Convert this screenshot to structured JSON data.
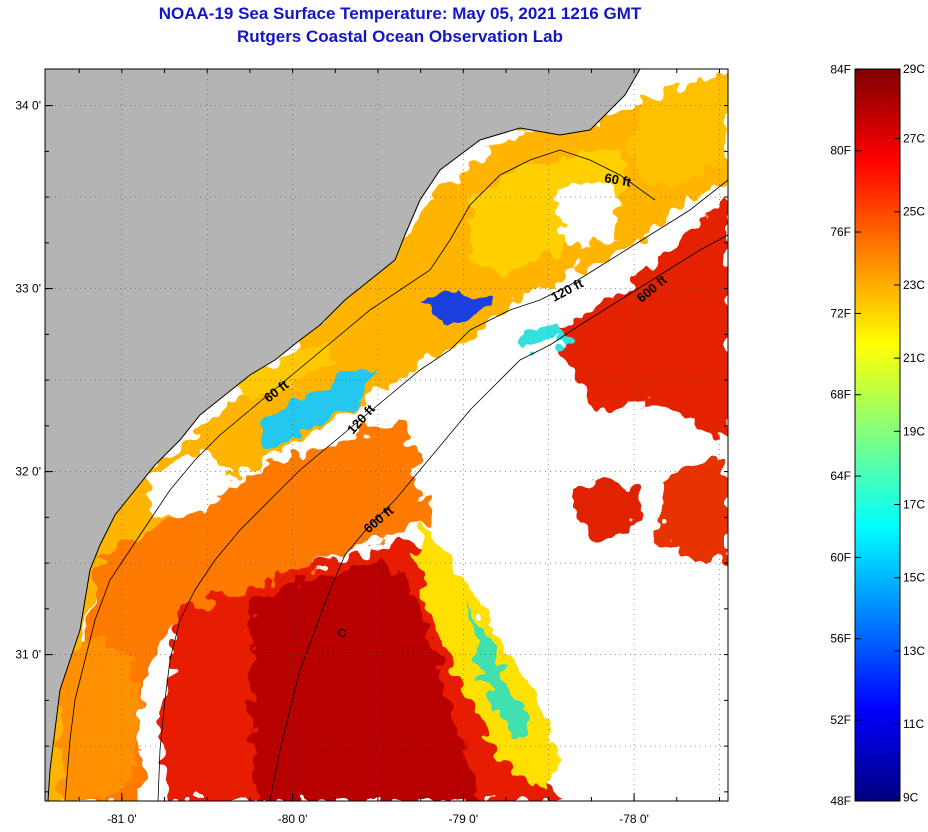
{
  "title": {
    "line1": "NOAA-19 Sea Surface Temperature:  May 05, 2021 1216 GMT",
    "line2": "Rutgers Coastal Ocean Observation Lab"
  },
  "map": {
    "lon_range": [
      -81.45,
      -77.45
    ],
    "lat_range": [
      30.2,
      34.2
    ],
    "x_ticks": [
      {
        "value": -81,
        "label": "-81 0'"
      },
      {
        "value": -80,
        "label": "-80 0'"
      },
      {
        "value": -79,
        "label": "-79 0'"
      },
      {
        "value": -78,
        "label": "-78 0'"
      }
    ],
    "y_ticks": [
      {
        "value": 34,
        "label": "34 0'"
      },
      {
        "value": 33,
        "label": "33 0'"
      },
      {
        "value": 32,
        "label": "32 0'"
      },
      {
        "value": 31,
        "label": "31 0'"
      }
    ],
    "grid": "dotted",
    "contour_labels": [
      {
        "text": "60 ft",
        "lon": -78.1,
        "lat": 33.57,
        "angle": 10
      },
      {
        "text": "120 ft",
        "lon": -78.38,
        "lat": 32.97,
        "angle": -28
      },
      {
        "text": "600 ft",
        "lon": -77.88,
        "lat": 32.98,
        "angle": -40
      },
      {
        "text": "60 ft",
        "lon": -80.08,
        "lat": 32.42,
        "angle": -38
      },
      {
        "text": "120 ft",
        "lon": -79.58,
        "lat": 32.27,
        "angle": -48
      },
      {
        "text": "600 ft",
        "lon": -79.48,
        "lat": 31.72,
        "angle": -40
      }
    ],
    "colors": {
      "land": "#b4b4b4",
      "cloud": "#ffffff"
    }
  },
  "colorbar": {
    "f_labels": [
      "84F",
      "80F",
      "76F",
      "72F",
      "68F",
      "64F",
      "60F",
      "56F",
      "52F",
      "48F"
    ],
    "f_values": [
      84,
      80,
      76,
      72,
      68,
      64,
      60,
      56,
      52,
      48
    ],
    "c_labels": [
      "29C",
      "27C",
      "25C",
      "23C",
      "21C",
      "19C",
      "17C",
      "15C",
      "13C",
      "11C",
      "9C"
    ],
    "c_values": [
      29,
      27,
      25,
      23,
      21,
      19,
      17,
      15,
      13,
      11,
      9
    ],
    "range_c": [
      8.9,
      28.9
    ],
    "colormap": "jet"
  }
}
